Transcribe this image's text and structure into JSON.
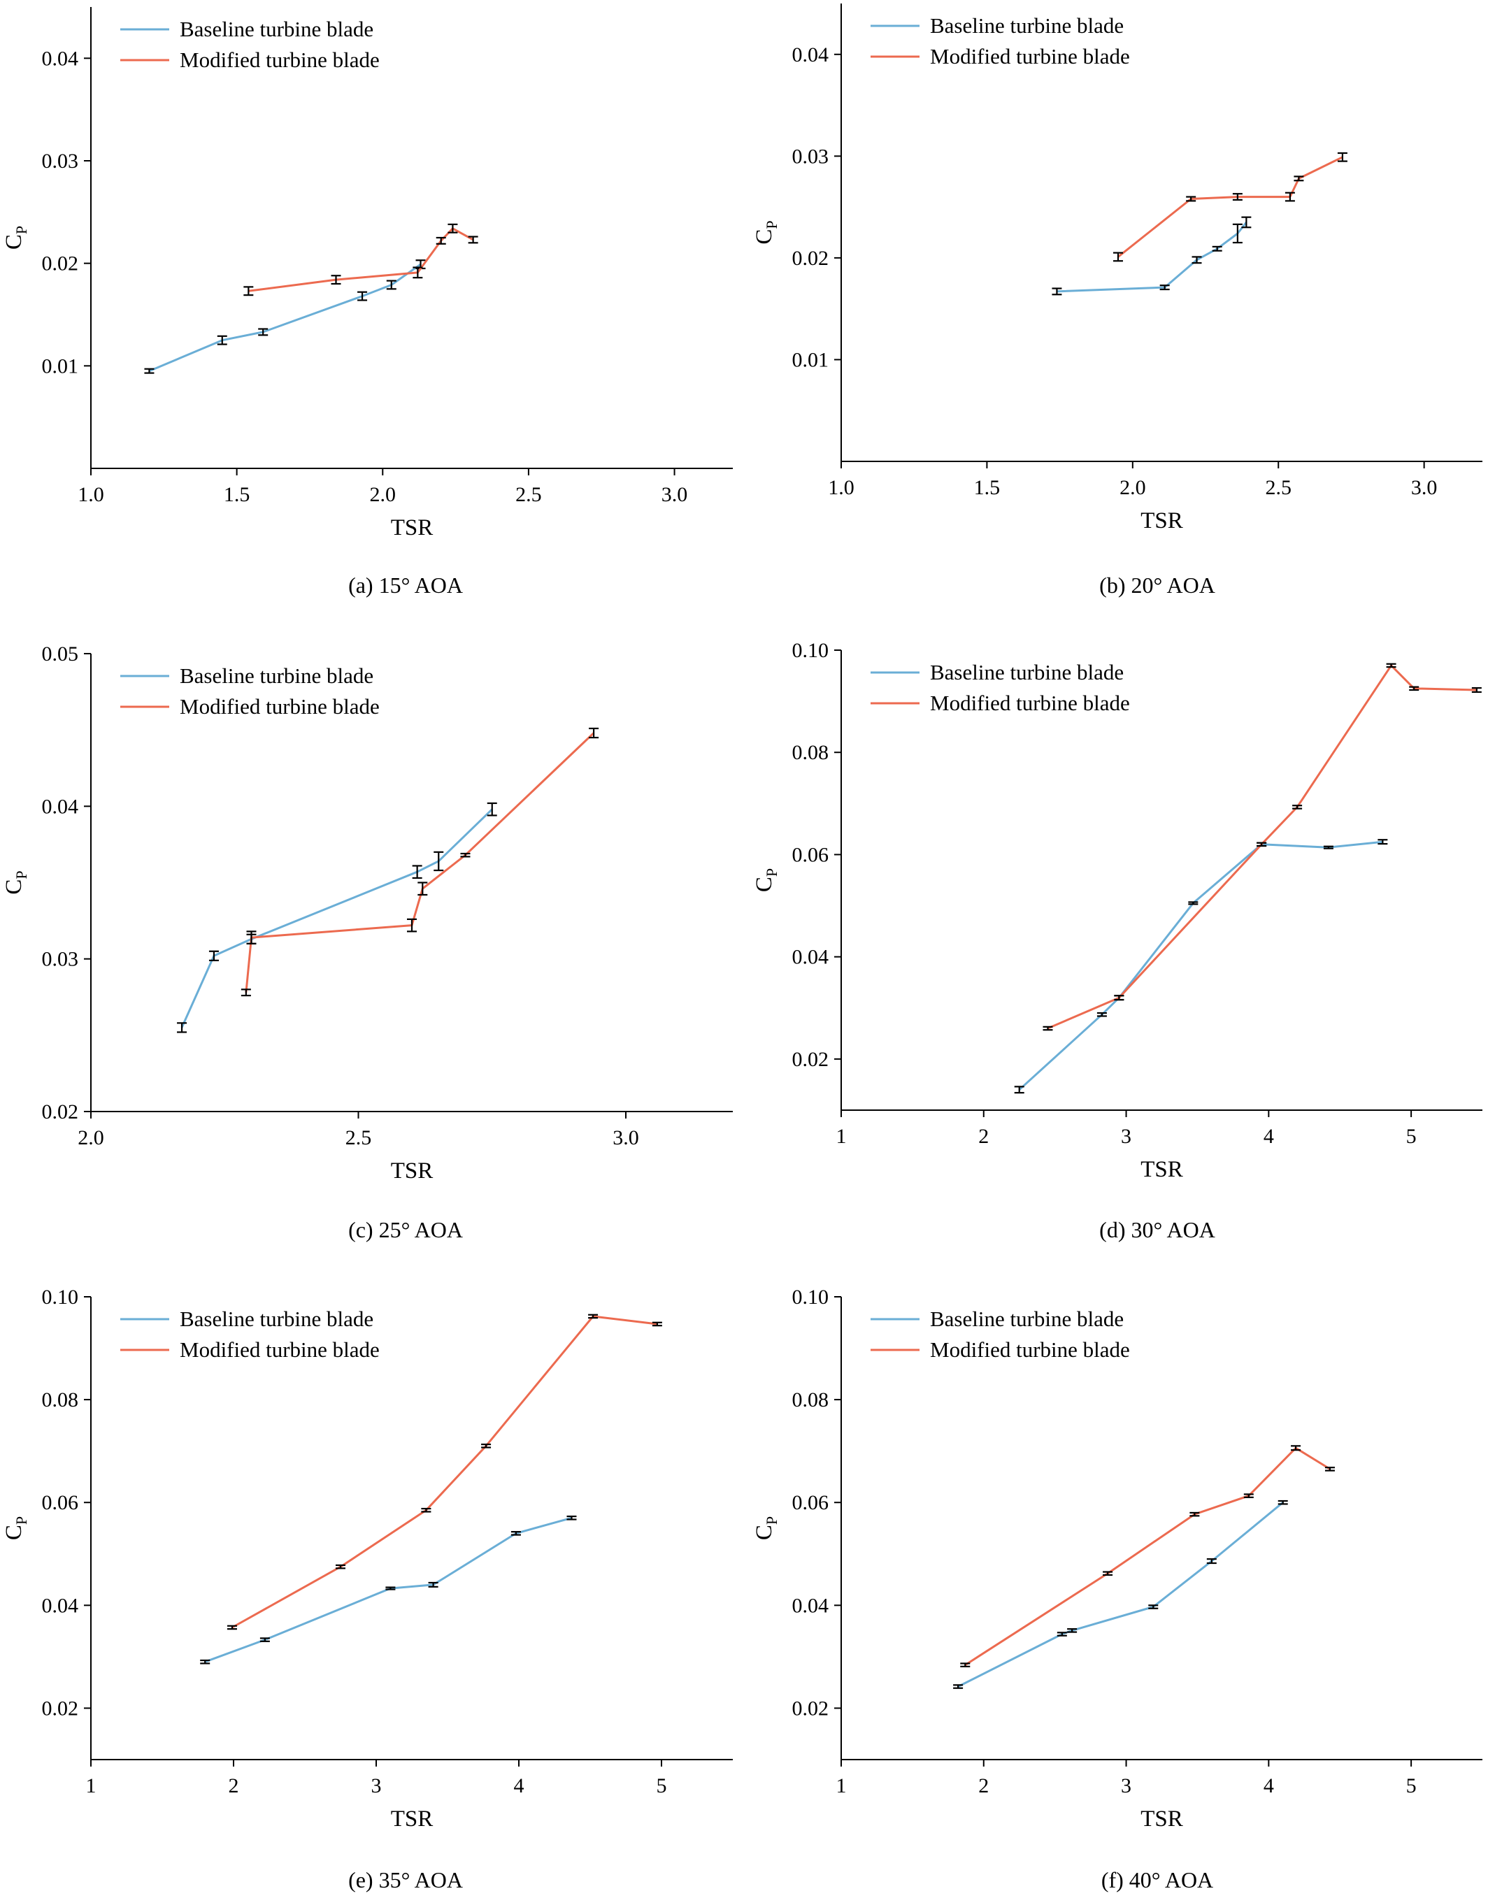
{
  "colors": {
    "baseline": "#6aaed6",
    "modified": "#ec6a4f"
  },
  "chart_data": [
    {
      "type": "line",
      "caption": "(a) 15° AOA",
      "xlabel": "TSR",
      "ylabel": "C",
      "ylabel_sub": "P",
      "xlim": [
        1.0,
        3.2
      ],
      "ylim": [
        0.0,
        0.045
      ],
      "xticks": [
        "1.0",
        "1.5",
        "2.0",
        "2.5",
        "3.0"
      ],
      "yticks": [
        "0.01",
        "0.02",
        "0.03",
        "0.04"
      ],
      "legend_position": "top-left",
      "series": [
        {
          "name": "Baseline turbine blade",
          "color_key": "baseline",
          "x": [
            1.2,
            1.45,
            1.59,
            1.93,
            2.03,
            2.13
          ],
          "y": [
            0.0095,
            0.0125,
            0.0133,
            0.0168,
            0.0179,
            0.0199
          ],
          "err": [
            0.0002,
            0.0004,
            0.0003,
            0.0004,
            0.0004,
            0.0004
          ]
        },
        {
          "name": "Modified turbine blade",
          "color_key": "modified",
          "x": [
            1.54,
            1.84,
            2.12,
            2.2,
            2.24,
            2.31
          ],
          "y": [
            0.0173,
            0.0184,
            0.0191,
            0.0222,
            0.0234,
            0.0223
          ],
          "err": [
            0.0004,
            0.0004,
            0.0005,
            0.0003,
            0.0004,
            0.0003
          ]
        }
      ]
    },
    {
      "type": "line",
      "caption": "(b) 20° AOA",
      "xlabel": "TSR",
      "ylabel": "C",
      "ylabel_sub": "P",
      "xlim": [
        1.0,
        3.2
      ],
      "ylim": [
        0.0,
        0.045
      ],
      "xticks": [
        "1.0",
        "1.5",
        "2.0",
        "2.5",
        "3.0"
      ],
      "yticks": [
        "0.01",
        "0.02",
        "0.03",
        "0.04"
      ],
      "legend_position": "top-left",
      "series": [
        {
          "name": "Baseline turbine blade",
          "color_key": "baseline",
          "x": [
            1.74,
            2.11,
            2.22,
            2.29,
            2.36,
            2.39
          ],
          "y": [
            0.0167,
            0.0171,
            0.0198,
            0.0209,
            0.0224,
            0.0235
          ],
          "err": [
            0.0003,
            0.0002,
            0.0003,
            0.0002,
            0.0009,
            0.0005
          ]
        },
        {
          "name": "Modified turbine blade",
          "color_key": "modified",
          "x": [
            1.95,
            2.2,
            2.36,
            2.54,
            2.57,
            2.72
          ],
          "y": [
            0.0201,
            0.0258,
            0.026,
            0.026,
            0.0278,
            0.0299
          ],
          "err": [
            0.0004,
            0.0002,
            0.0003,
            0.0004,
            0.0002,
            0.0004
          ]
        }
      ]
    },
    {
      "type": "line",
      "caption": "(c) 25° AOA",
      "xlabel": "TSR",
      "ylabel": "C",
      "ylabel_sub": "P",
      "xlim": [
        2.0,
        3.2
      ],
      "ylim": [
        0.02,
        0.05
      ],
      "xticks": [
        "2.0",
        "2.5",
        "3.0"
      ],
      "yticks": [
        "0.02",
        "0.03",
        "0.04",
        "0.05"
      ],
      "legend_position": "top-left",
      "series": [
        {
          "name": "Baseline turbine blade",
          "color_key": "baseline",
          "x": [
            2.17,
            2.23,
            2.3,
            2.61,
            2.65,
            2.75
          ],
          "y": [
            0.0255,
            0.0302,
            0.0313,
            0.0357,
            0.0364,
            0.0398
          ],
          "err": [
            0.0003,
            0.0003,
            0.0003,
            0.0004,
            0.0006,
            0.0004
          ]
        },
        {
          "name": "Modified turbine blade",
          "color_key": "modified",
          "x": [
            2.29,
            2.3,
            2.6,
            2.62,
            2.7,
            2.94
          ],
          "y": [
            0.0278,
            0.0314,
            0.0322,
            0.0346,
            0.0368,
            0.0448
          ],
          "err": [
            0.0002,
            0.0004,
            0.0004,
            0.0004,
            0.0001,
            0.0003
          ]
        }
      ]
    },
    {
      "type": "line",
      "caption": "(d) 30° AOA",
      "xlabel": "TSR",
      "ylabel": "C",
      "ylabel_sub": "P",
      "xlim": [
        1.0,
        5.5
      ],
      "ylim": [
        0.01,
        0.1
      ],
      "xticks": [
        "1",
        "2",
        "3",
        "4",
        "5"
      ],
      "yticks": [
        "0.02",
        "0.04",
        "0.06",
        "0.08",
        "0.10"
      ],
      "legend_position": "top-left",
      "series": [
        {
          "name": "Baseline turbine blade",
          "color_key": "baseline",
          "x": [
            2.25,
            2.83,
            2.95,
            3.47,
            3.95,
            4.42,
            4.8
          ],
          "y": [
            0.014,
            0.0287,
            0.032,
            0.0505,
            0.062,
            0.0614,
            0.0625
          ],
          "err": [
            0.0006,
            0.0003,
            0.0004,
            0.0002,
            0.0003,
            0.0002,
            0.0004
          ]
        },
        {
          "name": "Modified turbine blade",
          "color_key": "modified",
          "x": [
            2.45,
            2.95,
            3.95,
            4.2,
            4.86,
            5.02,
            5.46
          ],
          "y": [
            0.026,
            0.032,
            0.062,
            0.0693,
            0.097,
            0.0925,
            0.0922
          ],
          "err": [
            0.0003,
            0.0004,
            0.0003,
            0.0003,
            0.0003,
            0.0003,
            0.0004
          ]
        }
      ]
    },
    {
      "type": "line",
      "caption": "(e) 35° AOA",
      "xlabel": "TSR",
      "ylabel": "C",
      "ylabel_sub": "P",
      "xlim": [
        1.0,
        5.5
      ],
      "ylim": [
        0.01,
        0.1
      ],
      "xticks": [
        "1",
        "2",
        "3",
        "4",
        "5"
      ],
      "yticks": [
        "0.02",
        "0.04",
        "0.06",
        "0.08",
        "0.10"
      ],
      "legend_position": "top-left",
      "series": [
        {
          "name": "Baseline turbine blade",
          "color_key": "baseline",
          "x": [
            1.8,
            2.22,
            3.1,
            3.4,
            3.98,
            4.37
          ],
          "y": [
            0.029,
            0.0333,
            0.0433,
            0.044,
            0.054,
            0.057
          ],
          "err": [
            0.0003,
            0.0003,
            0.0002,
            0.0004,
            0.0003,
            0.0003
          ]
        },
        {
          "name": "Modified turbine blade",
          "color_key": "modified",
          "x": [
            1.99,
            2.75,
            3.35,
            3.77,
            4.52,
            4.97
          ],
          "y": [
            0.0357,
            0.0475,
            0.0585,
            0.071,
            0.0962,
            0.0947
          ],
          "err": [
            0.0003,
            0.0003,
            0.0003,
            0.0003,
            0.0003,
            0.0003
          ]
        }
      ]
    },
    {
      "type": "line",
      "caption": "(f) 40° AOA",
      "xlabel": "TSR",
      "ylabel": "C",
      "ylabel_sub": "P",
      "xlim": [
        1.0,
        5.5
      ],
      "ylim": [
        0.01,
        0.1
      ],
      "xticks": [
        "1",
        "2",
        "3",
        "4",
        "5"
      ],
      "yticks": [
        "0.02",
        "0.04",
        "0.06",
        "0.08",
        "0.10"
      ],
      "legend_position": "top-left",
      "series": [
        {
          "name": "Baseline turbine blade",
          "color_key": "baseline",
          "x": [
            1.82,
            2.55,
            2.62,
            3.19,
            3.6,
            4.1
          ],
          "y": [
            0.0242,
            0.0344,
            0.0351,
            0.0397,
            0.0486,
            0.06
          ],
          "err": [
            0.0003,
            0.0003,
            0.0003,
            0.0003,
            0.0004,
            0.0003
          ]
        },
        {
          "name": "Modified turbine blade",
          "color_key": "modified",
          "x": [
            1.87,
            2.87,
            3.48,
            3.86,
            4.19,
            4.43
          ],
          "y": [
            0.0284,
            0.0462,
            0.0577,
            0.0613,
            0.0706,
            0.0665
          ],
          "err": [
            0.0003,
            0.0003,
            0.0003,
            0.0003,
            0.0004,
            0.0003
          ]
        }
      ]
    }
  ]
}
